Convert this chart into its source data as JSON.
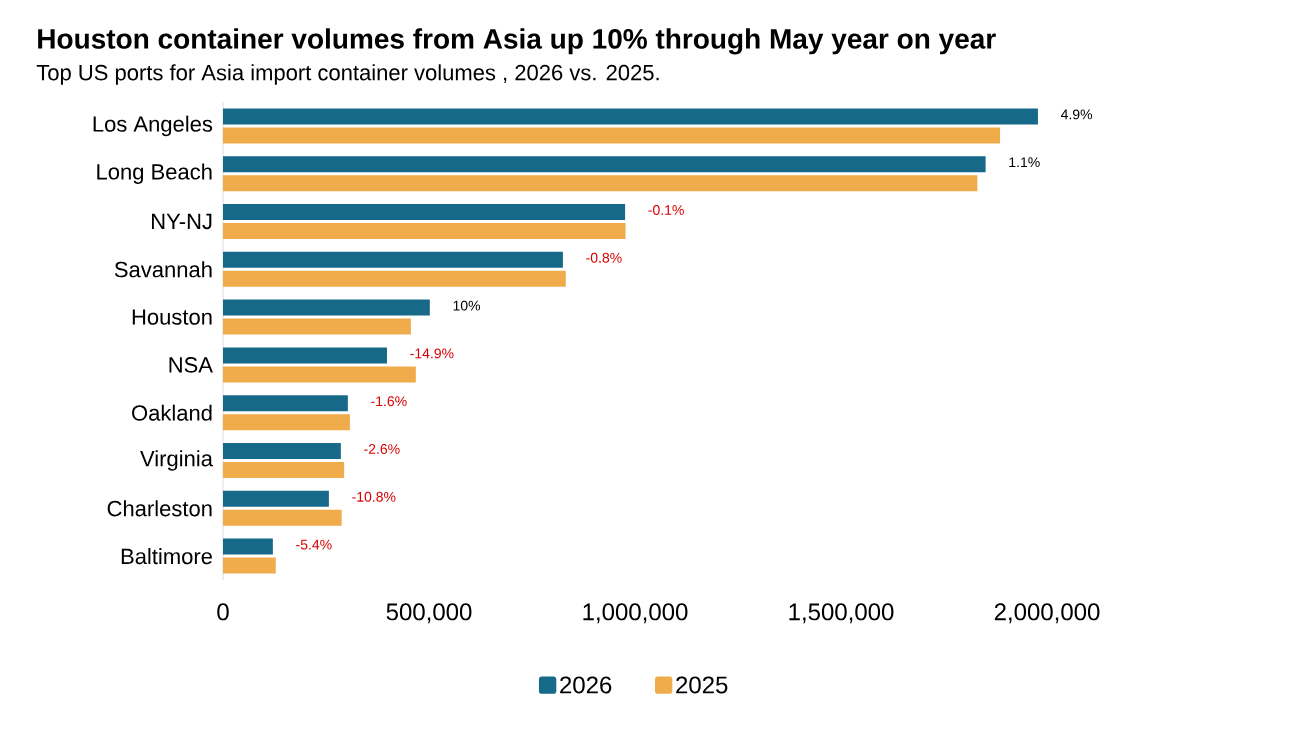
{
  "chart_data": {
    "type": "bar",
    "orientation": "horizontal",
    "title": "Houston container volumes from Asia up 10% through May year on year",
    "subtitle": "Top US ports for Asia import container volumes , 2026 vs. 2025.",
    "categories": [
      "Los Angeles",
      "Long Beach",
      "NY-NJ",
      "Savannah",
      "Houston",
      "NSA",
      "Oakland",
      "Virginia",
      "Charleston",
      "Baltimore"
    ],
    "series": [
      {
        "name": "2026",
        "color": "#17698a",
        "values": [
          1978000,
          1851000,
          976000,
          825000,
          502000,
          398000,
          303000,
          286000,
          257000,
          121000
        ]
      },
      {
        "name": "2025",
        "color": "#f0ab4b",
        "values": [
          1886000,
          1831000,
          977000,
          832000,
          456000,
          468000,
          308000,
          294000,
          288000,
          128000
        ]
      }
    ],
    "annotations": [
      {
        "text": "4.9%",
        "x": 1978000,
        "y": "Los Angeles"
      },
      {
        "text": "1.1%",
        "x": 1851000,
        "y": "Long Beach"
      },
      {
        "text": "-0.1%",
        "x": 976000,
        "y": "NY-NJ"
      },
      {
        "text": "-0.8%",
        "x": 825000,
        "y": "Savannah"
      },
      {
        "text": "10%",
        "x": 502000,
        "y": "Houston"
      },
      {
        "text": "-14.9%",
        "x": 398000,
        "y": "NSA"
      },
      {
        "text": "-1.6%",
        "x": 303000,
        "y": "Oakland"
      },
      {
        "text": "-2.6%",
        "x": 286000,
        "y": "Virginia"
      },
      {
        "text": "-10.8%",
        "x": 257000,
        "y": "Charleston"
      },
      {
        "text": "-5.4%",
        "x": 121000,
        "y": "Baltimore"
      }
    ],
    "xlim": [
      0,
      2000000
    ],
    "xticks": [
      0,
      {
        "value": 500000,
        "label": "500,000"
      },
      {
        "value": 1000000,
        "label": "1,000,000"
      },
      {
        "value": 1500000,
        "label": "1,500,000"
      },
      {
        "value": 2000000,
        "label": "2,000,000"
      }
    ],
    "legend": "bottom"
  }
}
